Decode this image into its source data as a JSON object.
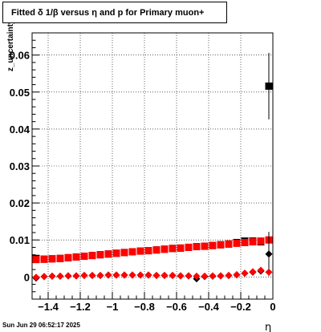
{
  "title": "Fitted δ 1/β versus η and p for Primary muon+",
  "footer_timestamp": "Sun Jun 29 06:52:17 2025",
  "chart_data": {
    "type": "scatter",
    "title": "Fitted δ 1/β versus η and p for Primary muon+",
    "xlabel": "η",
    "ylabel": "z_uncertainty",
    "xlim": [
      -1.5,
      0
    ],
    "ylim": [
      -0.006,
      0.066
    ],
    "grid": true,
    "xticks": [
      -1.4,
      -1.2,
      -1,
      -0.8,
      -0.6,
      -0.4,
      -0.2,
      0
    ],
    "xtick_labels": [
      "−1.4",
      "−1.2",
      "−1",
      "−0.8",
      "−0.6",
      "−0.4",
      "−0.2",
      "0"
    ],
    "yticks": [
      0,
      0.01,
      0.02,
      0.03,
      0.04,
      0.05,
      0.06
    ],
    "ytick_labels": [
      "0",
      "0.01",
      "0.02",
      "0.03",
      "0.04",
      "0.05",
      "0.06"
    ],
    "series": [
      {
        "marker": "square",
        "color": "#000000",
        "x": [
          -1.475,
          -1.425,
          -1.375,
          -1.325,
          -1.275,
          -1.225,
          -1.175,
          -1.125,
          -1.075,
          -1.025,
          -0.975,
          -0.925,
          -0.875,
          -0.825,
          -0.775,
          -0.725,
          -0.675,
          -0.625,
          -0.575,
          -0.525,
          -0.475,
          -0.425,
          -0.375,
          -0.325,
          -0.275,
          -0.225,
          -0.175,
          -0.125,
          -0.075,
          -0.025
        ],
        "y": [
          0.005,
          0.0048,
          0.0049,
          0.005,
          0.0052,
          0.0054,
          0.0056,
          0.0058,
          0.006,
          0.0062,
          0.0064,
          0.0066,
          0.0068,
          0.007,
          0.0071,
          0.0073,
          0.0075,
          0.0077,
          0.0078,
          0.008,
          0.0082,
          0.0083,
          0.0085,
          0.0087,
          0.0089,
          0.0093,
          0.0097,
          0.0097,
          0.0095,
          0.0516
        ],
        "yerr": [
          0.0003,
          0.0002,
          0.0002,
          0.0002,
          0.0002,
          0.0002,
          0.0002,
          0.0002,
          0.0002,
          0.0002,
          0.0002,
          0.0002,
          0.0002,
          0.0002,
          0.0002,
          0.0002,
          0.0002,
          0.0002,
          0.0002,
          0.0002,
          0.0002,
          0.0002,
          0.0002,
          0.0002,
          0.0003,
          0.0003,
          0.0003,
          0.0004,
          0.0004,
          0.009
        ]
      },
      {
        "marker": "square",
        "color": "#ff0000",
        "x": [
          -1.475,
          -1.425,
          -1.375,
          -1.325,
          -1.275,
          -1.225,
          -1.175,
          -1.125,
          -1.075,
          -1.025,
          -0.975,
          -0.925,
          -0.875,
          -0.825,
          -0.775,
          -0.725,
          -0.675,
          -0.625,
          -0.575,
          -0.525,
          -0.475,
          -0.425,
          -0.375,
          -0.325,
          -0.275,
          -0.225,
          -0.175,
          -0.125,
          -0.075,
          -0.025
        ],
        "y": [
          0.0047,
          0.0048,
          0.0049,
          0.005,
          0.0052,
          0.0054,
          0.0056,
          0.0058,
          0.006,
          0.0062,
          0.0064,
          0.0066,
          0.0068,
          0.007,
          0.0071,
          0.0073,
          0.0075,
          0.0077,
          0.0078,
          0.008,
          0.0082,
          0.0083,
          0.0085,
          0.0087,
          0.0089,
          0.0091,
          0.0093,
          0.0095,
          0.0097,
          0.01
        ],
        "yerr": [
          0.0002,
          0.0002,
          0.0002,
          0.0002,
          0.0002,
          0.0002,
          0.0002,
          0.0002,
          0.0002,
          0.0002,
          0.0002,
          0.0002,
          0.0002,
          0.0002,
          0.0002,
          0.0002,
          0.0002,
          0.0002,
          0.0002,
          0.0002,
          0.0002,
          0.0002,
          0.0002,
          0.0002,
          0.0002,
          0.0002,
          0.0002,
          0.0002,
          0.0002,
          0.0002
        ]
      },
      {
        "marker": "diamond",
        "color": "#000000",
        "x": [
          -1.475,
          -1.425,
          -1.375,
          -1.325,
          -1.275,
          -1.225,
          -1.175,
          -1.125,
          -1.075,
          -1.025,
          -0.975,
          -0.925,
          -0.875,
          -0.825,
          -0.775,
          -0.725,
          -0.675,
          -0.625,
          -0.575,
          -0.525,
          -0.475,
          -0.425,
          -0.375,
          -0.325,
          -0.275,
          -0.225,
          -0.175,
          -0.125,
          -0.075,
          -0.025
        ],
        "y": [
          -0.0003,
          0.0001,
          0.0002,
          0.0002,
          0.0003,
          0.0003,
          0.0004,
          0.0004,
          0.0004,
          0.0005,
          0.0005,
          0.0005,
          0.0005,
          0.0005,
          0.0005,
          0.0004,
          0.0004,
          0.0004,
          0.0003,
          0.0003,
          -0.0005,
          0.0001,
          0.0002,
          0.0003,
          0.0004,
          0.0006,
          0.001,
          0.0013,
          0.0016,
          0.0062
        ],
        "yerr": [
          0.0003,
          0.0002,
          0.0002,
          0.0002,
          0.0002,
          0.0002,
          0.0002,
          0.0002,
          0.0002,
          0.0002,
          0.0002,
          0.0002,
          0.0002,
          0.0002,
          0.0002,
          0.0002,
          0.0002,
          0.0002,
          0.0002,
          0.0002,
          0.0003,
          0.0002,
          0.0002,
          0.0002,
          0.0002,
          0.0003,
          0.0003,
          0.0004,
          0.0004,
          0.006
        ]
      },
      {
        "marker": "diamond",
        "color": "#ff0000",
        "x": [
          -1.475,
          -1.425,
          -1.375,
          -1.325,
          -1.275,
          -1.225,
          -1.175,
          -1.125,
          -1.075,
          -1.025,
          -0.975,
          -0.925,
          -0.875,
          -0.825,
          -0.775,
          -0.725,
          -0.675,
          -0.625,
          -0.575,
          -0.525,
          -0.475,
          -0.425,
          -0.375,
          -0.325,
          -0.275,
          -0.225,
          -0.175,
          -0.125,
          -0.075,
          -0.025
        ],
        "y": [
          -0.0001,
          0.0001,
          0.0002,
          0.0002,
          0.0003,
          0.0003,
          0.0004,
          0.0004,
          0.0004,
          0.0005,
          0.0005,
          0.0005,
          0.0005,
          0.0005,
          0.0005,
          0.0004,
          0.0004,
          0.0004,
          0.0003,
          0.0003,
          0.0002,
          0.0002,
          0.0003,
          0.0003,
          0.0004,
          0.0006,
          0.001,
          0.0014,
          0.0018,
          0.0013
        ],
        "yerr": [
          0.0002,
          0.0002,
          0.0002,
          0.0002,
          0.0002,
          0.0002,
          0.0002,
          0.0002,
          0.0002,
          0.0002,
          0.0002,
          0.0002,
          0.0002,
          0.0002,
          0.0002,
          0.0002,
          0.0002,
          0.0002,
          0.0002,
          0.0002,
          0.0002,
          0.0002,
          0.0002,
          0.0002,
          0.0002,
          0.0002,
          0.0002,
          0.0002,
          0.0002,
          0.0002
        ]
      }
    ]
  }
}
